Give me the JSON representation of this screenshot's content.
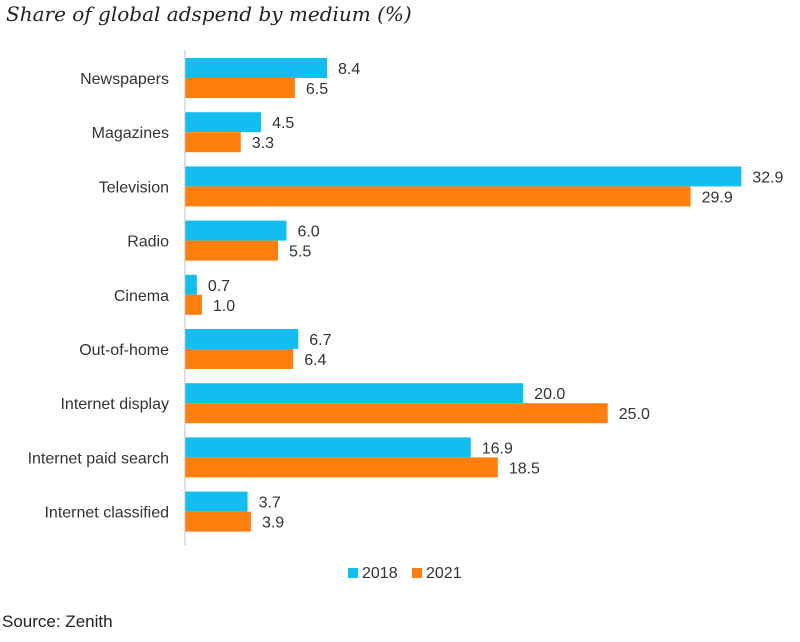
{
  "title": "Share of global adspend by medium (%)",
  "source": "Source: Zenith",
  "chart_data": {
    "type": "bar",
    "orientation": "horizontal",
    "title": "Share of global adspend by medium (%)",
    "categories": [
      "Newspapers",
      "Magazines",
      "Television",
      "Radio",
      "Cinema",
      "Out-of-home",
      "Internet display",
      "Internet paid search",
      "Internet classified"
    ],
    "series": [
      {
        "name": "2018",
        "color": "#12bef0",
        "values": [
          8.4,
          4.5,
          32.9,
          6.0,
          0.7,
          6.7,
          20.0,
          16.9,
          3.7
        ]
      },
      {
        "name": "2021",
        "color": "#ff7f0e",
        "values": [
          6.5,
          3.3,
          29.9,
          5.5,
          1.0,
          6.4,
          25.0,
          18.5,
          3.9
        ]
      }
    ],
    "xlim": [
      0,
      33
    ],
    "grid": false,
    "legend_position": "bottom"
  }
}
